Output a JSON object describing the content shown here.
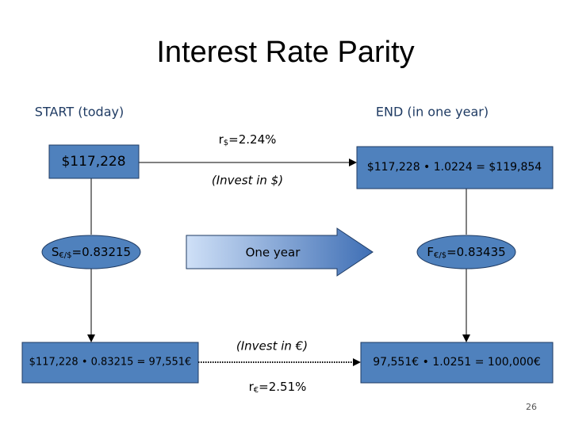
{
  "title": "Interest Rate Parity",
  "start_label": "START (today)",
  "end_label": "END (in one year)",
  "nodes": [
    {
      "label": "$117,228"
    },
    {
      "base": "S",
      "sub": "€/$",
      "rest": "=0.83215"
    },
    {
      "label": "$117,228 • 0.83215 = 97,551€"
    },
    {
      "label": "$117,228 • 1.0224 = $119,854"
    },
    {
      "base": "F",
      "sub": "€/$",
      "rest": "=0.83435"
    },
    {
      "label": "97,551€ • 1.0251 = 100,000€"
    }
  ],
  "edges": [
    {
      "rate_base": "r",
      "rate_sub": "$",
      "rate_rest": "=2.24%",
      "label": "(Invest in $)"
    },
    {
      "label": "One year"
    },
    {
      "rate_base": "r",
      "rate_sub": "€",
      "rate_rest": "=2.51%",
      "label": "(Invest in €)"
    }
  ],
  "page_number": "26"
}
